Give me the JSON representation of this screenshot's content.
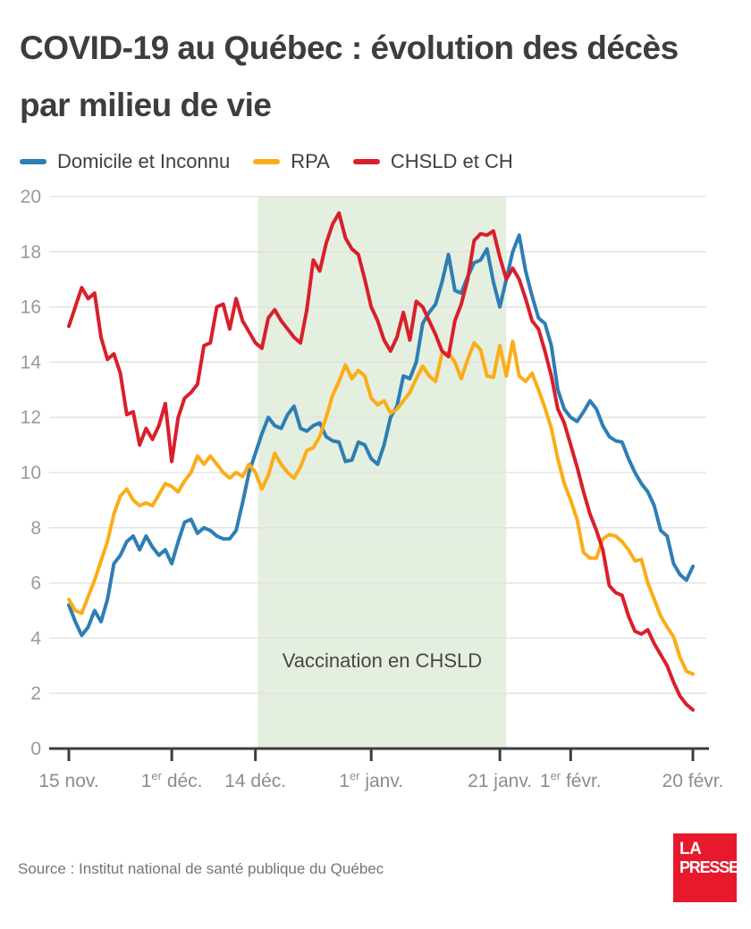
{
  "title": {
    "line1": "COVID-19 au Québec : évolution des décès",
    "line2": "par milieu de vie"
  },
  "legend": [
    {
      "label": "Domicile et Inconnu",
      "color": "#2d7eb6"
    },
    {
      "label": "RPA",
      "color": "#fbad18"
    },
    {
      "label": "CHSLD et CH",
      "color": "#d91f2b"
    }
  ],
  "chart_data": {
    "type": "line",
    "title": "COVID-19 au Québec : évolution des décès par milieu de vie",
    "xlabel": "",
    "ylabel": "",
    "ylim": [
      0,
      20
    ],
    "grid": true,
    "legend_position": "top",
    "x_unit": "jours, du 15 nov. 2020 au 20 févr. 2021 (quotidien, 98 points)",
    "y_ticks": [
      0,
      2,
      4,
      6,
      8,
      10,
      12,
      14,
      16,
      18,
      20
    ],
    "x_ticks": [
      {
        "day": 0,
        "pre": "15 nov.",
        "sup": "",
        "post": ""
      },
      {
        "day": 16,
        "pre": "1",
        "sup": "er",
        "post": " déc."
      },
      {
        "day": 29,
        "pre": "14 déc.",
        "sup": "",
        "post": ""
      },
      {
        "day": 47,
        "pre": "1",
        "sup": "er",
        "post": " janv."
      },
      {
        "day": 67,
        "pre": "21 janv.",
        "sup": "",
        "post": ""
      },
      {
        "day": 78,
        "pre": "1",
        "sup": "er",
        "post": " févr."
      },
      {
        "day": 97,
        "pre": "20 févr.",
        "sup": "",
        "post": ""
      }
    ],
    "band": {
      "start_day": 29.4,
      "end_day": 68,
      "color": "#e4efdf",
      "label": "Vaccination en CHSLD"
    },
    "series": [
      {
        "name": "Domicile et Inconnu",
        "color": "#2d7eb6",
        "values": [
          5.2,
          4.6,
          4.1,
          4.4,
          5.0,
          4.6,
          5.4,
          6.7,
          7.0,
          7.5,
          7.7,
          7.2,
          7.7,
          7.3,
          7.0,
          7.2,
          6.7,
          7.5,
          8.2,
          8.3,
          7.8,
          8.0,
          7.9,
          7.7,
          7.6,
          7.6,
          7.9,
          8.9,
          10.0,
          10.7,
          11.4,
          12.0,
          11.7,
          11.6,
          12.1,
          12.4,
          11.6,
          11.5,
          11.7,
          11.8,
          11.3,
          11.15,
          11.1,
          10.4,
          10.45,
          11.1,
          11.0,
          10.5,
          10.3,
          11.0,
          12.0,
          12.4,
          13.5,
          13.4,
          14.0,
          15.4,
          15.8,
          16.1,
          16.9,
          17.9,
          16.6,
          16.5,
          17.1,
          17.6,
          17.7,
          18.1,
          16.9,
          16.0,
          17.0,
          18.0,
          18.6,
          17.3,
          16.4,
          15.6,
          15.4,
          14.6,
          13.0,
          12.3,
          12.0,
          11.85,
          12.2,
          12.6,
          12.3,
          11.7,
          11.3,
          11.15,
          11.1,
          10.5,
          10.0,
          9.6,
          9.3,
          8.8,
          7.9,
          7.7,
          6.7,
          6.3,
          6.1,
          6.6
        ]
      },
      {
        "name": "RPA",
        "color": "#fbad18",
        "values": [
          5.4,
          5.0,
          4.9,
          5.5,
          6.1,
          6.8,
          7.5,
          8.5,
          9.15,
          9.4,
          9.0,
          8.8,
          8.9,
          8.8,
          9.2,
          9.6,
          9.5,
          9.3,
          9.7,
          10.0,
          10.6,
          10.3,
          10.6,
          10.3,
          10.0,
          9.8,
          10.0,
          9.85,
          10.3,
          10.0,
          9.4,
          9.9,
          10.7,
          10.3,
          10.0,
          9.8,
          10.2,
          10.8,
          10.9,
          11.3,
          12.0,
          12.8,
          13.3,
          13.9,
          13.4,
          13.7,
          13.5,
          12.7,
          12.45,
          12.6,
          12.15,
          12.3,
          12.6,
          12.9,
          13.4,
          13.85,
          13.5,
          13.3,
          14.3,
          14.35,
          14.0,
          13.4,
          14.1,
          14.7,
          14.45,
          13.5,
          13.45,
          14.6,
          13.5,
          14.75,
          13.5,
          13.3,
          13.6,
          13.0,
          12.35,
          11.6,
          10.5,
          9.6,
          9.0,
          8.3,
          7.1,
          6.9,
          6.9,
          7.6,
          7.75,
          7.7,
          7.5,
          7.2,
          6.8,
          6.85,
          6.0,
          5.4,
          4.8,
          4.4,
          4.05,
          3.3,
          2.8,
          2.7
        ]
      },
      {
        "name": "CHSLD et CH",
        "color": "#d91f2b",
        "values": [
          15.3,
          16.0,
          16.7,
          16.3,
          16.5,
          14.9,
          14.1,
          14.3,
          13.6,
          12.1,
          12.2,
          11.0,
          11.6,
          11.2,
          11.7,
          12.5,
          10.4,
          12.0,
          12.7,
          12.9,
          13.2,
          14.6,
          14.7,
          16.0,
          16.1,
          15.2,
          16.3,
          15.5,
          15.1,
          14.7,
          14.5,
          15.6,
          15.9,
          15.5,
          15.2,
          14.9,
          14.7,
          15.9,
          17.7,
          17.3,
          18.3,
          19.0,
          19.4,
          18.5,
          18.1,
          17.9,
          17.0,
          16.0,
          15.5,
          14.8,
          14.4,
          14.9,
          15.8,
          14.8,
          16.2,
          16.0,
          15.5,
          15.0,
          14.4,
          14.2,
          15.5,
          16.1,
          17.0,
          18.4,
          18.65,
          18.6,
          18.75,
          17.8,
          17.0,
          17.4,
          17.0,
          16.3,
          15.5,
          15.2,
          14.4,
          13.5,
          12.3,
          11.8,
          11.0,
          10.2,
          9.3,
          8.5,
          7.9,
          7.2,
          5.9,
          5.65,
          5.55,
          4.8,
          4.25,
          4.15,
          4.3,
          3.8,
          3.4,
          3.0,
          2.4,
          1.9,
          1.6,
          1.4
        ]
      }
    ]
  },
  "style": {
    "axis_color": "#3c3c3c",
    "grid_color": "#e0e0e0",
    "y_label_color": "#9a9a9a",
    "x_label_color": "#8d8d8d",
    "band_label_color": "#474747"
  },
  "footer": {
    "source": "Source : Institut national de santé publique du Québec",
    "logo_line1": "LA",
    "logo_line2": "PRESSE"
  }
}
